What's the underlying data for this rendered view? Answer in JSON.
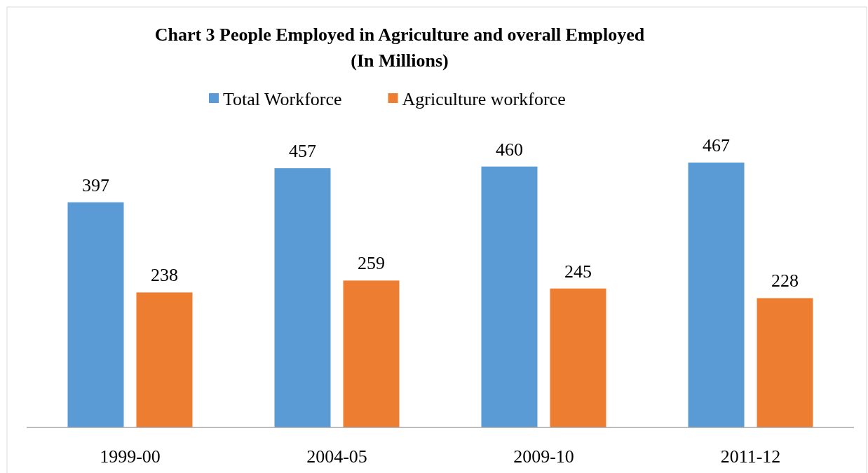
{
  "chart_data": {
    "type": "bar",
    "title": "Chart 3 People Employed in Agriculture and overall Employed",
    "subtitle": "(In Millions)",
    "categories": [
      "1999-00",
      "2004-05",
      "2009-10",
      "2011-12"
    ],
    "series": [
      {
        "name": "Total Workforce",
        "color": "#5b9bd5",
        "values": [
          397,
          457,
          460,
          467
        ]
      },
      {
        "name": "Agriculture workforce",
        "color": "#ed7d31",
        "values": [
          238,
          259,
          245,
          228
        ]
      }
    ],
    "data_labels": true,
    "legend": "top",
    "grid": false
  }
}
